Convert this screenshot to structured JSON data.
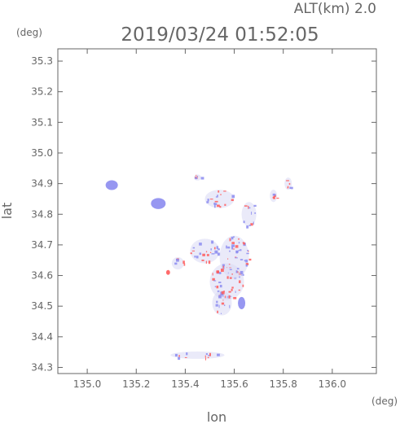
{
  "chart_data": {
    "type": "heatmap",
    "title": "2019/03/24 01:52:05",
    "subtitle": "ALT(km) 2.0",
    "xlabel": "lon",
    "ylabel": "lat",
    "xunit": "(deg)",
    "yunit": "(deg)",
    "xlim": [
      134.88,
      136.18
    ],
    "ylim": [
      34.28,
      35.34
    ],
    "xticks": [
      135.0,
      135.2,
      135.4,
      135.6,
      135.8,
      136.0
    ],
    "xtick_labels": [
      "135.0",
      "135.2",
      "135.4",
      "135.6",
      "135.8",
      "136.0"
    ],
    "yticks": [
      34.3,
      34.4,
      34.5,
      34.6,
      34.7,
      34.8,
      34.9,
      35.0,
      35.1,
      35.2,
      35.3
    ],
    "ytick_labels": [
      "34.3",
      "34.4",
      "34.5",
      "34.6",
      "34.7",
      "34.8",
      "34.9",
      "35.0",
      "35.1",
      "35.2",
      "35.3"
    ],
    "grid": false,
    "colors": {
      "axis": "#666666",
      "positive": "#ff5a5a",
      "negative": "#8c8cf0",
      "neutral": "#d8d8f4"
    },
    "blobs": [
      {
        "lon": 135.1,
        "lat": 34.895,
        "rlon": 0.025,
        "rlat": 0.016,
        "sign": "negative"
      },
      {
        "lon": 135.29,
        "lat": 34.835,
        "rlon": 0.03,
        "rlat": 0.018,
        "sign": "negative"
      },
      {
        "lon": 135.37,
        "lat": 34.64,
        "rlon": 0.025,
        "rlat": 0.02,
        "sign": "mixed"
      },
      {
        "lon": 135.54,
        "lat": 34.85,
        "rlon": 0.06,
        "rlat": 0.03,
        "sign": "mixed"
      },
      {
        "lon": 135.66,
        "lat": 34.8,
        "rlon": 0.03,
        "rlat": 0.04,
        "sign": "mixed"
      },
      {
        "lon": 135.48,
        "lat": 34.68,
        "rlon": 0.06,
        "rlat": 0.04,
        "sign": "mixed"
      },
      {
        "lon": 135.6,
        "lat": 34.66,
        "rlon": 0.06,
        "rlat": 0.07,
        "sign": "mixed"
      },
      {
        "lon": 135.57,
        "lat": 34.58,
        "rlon": 0.07,
        "rlat": 0.06,
        "sign": "mixed"
      },
      {
        "lon": 135.55,
        "lat": 34.51,
        "rlon": 0.04,
        "rlat": 0.04,
        "sign": "mixed"
      },
      {
        "lon": 135.63,
        "lat": 34.51,
        "rlon": 0.015,
        "rlat": 0.02,
        "sign": "negative"
      },
      {
        "lon": 135.33,
        "lat": 34.61,
        "rlon": 0.008,
        "rlat": 0.008,
        "sign": "positive"
      },
      {
        "lon": 135.76,
        "lat": 34.86,
        "rlon": 0.015,
        "rlat": 0.02,
        "sign": "mixed"
      },
      {
        "lon": 135.82,
        "lat": 34.9,
        "rlon": 0.015,
        "rlat": 0.02,
        "sign": "mixed"
      },
      {
        "lon": 135.45,
        "lat": 34.34,
        "rlon": 0.11,
        "rlat": 0.012,
        "sign": "mixed"
      },
      {
        "lon": 135.45,
        "lat": 34.92,
        "rlon": 0.015,
        "rlat": 0.01,
        "sign": "mixed"
      }
    ]
  }
}
